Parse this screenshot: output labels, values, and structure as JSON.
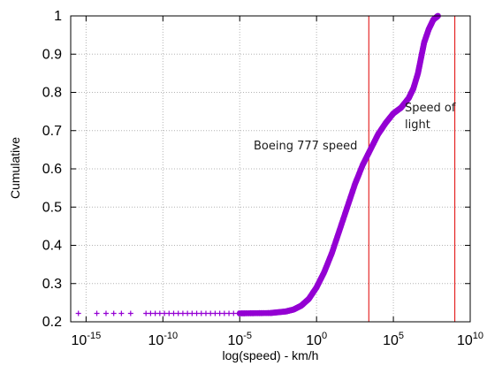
{
  "chart_data": {
    "type": "scatter",
    "title": "",
    "xlabel": "log(speed) - km/h",
    "ylabel": "Cumulative",
    "x_scale": "log10",
    "xlim_exponent": [
      -16,
      10
    ],
    "ylim": [
      0.2,
      1.0
    ],
    "x_ticks": [
      {
        "exp": -15,
        "base": "10",
        "sup": "-15"
      },
      {
        "exp": -10,
        "base": "10",
        "sup": "-10"
      },
      {
        "exp": -5,
        "base": "10",
        "sup": "-5"
      },
      {
        "exp": 0,
        "base": "10",
        "sup": "0"
      },
      {
        "exp": 5,
        "base": "10",
        "sup": "5"
      },
      {
        "exp": 10,
        "base": "10",
        "sup": "10"
      }
    ],
    "y_ticks": [
      {
        "value": 0.2,
        "label": "0.2"
      },
      {
        "value": 0.3,
        "label": "0.3"
      },
      {
        "value": 0.4,
        "label": "0.4"
      },
      {
        "value": 0.5,
        "label": "0.5"
      },
      {
        "value": 0.6,
        "label": "0.6"
      },
      {
        "value": 0.7,
        "label": "0.7"
      },
      {
        "value": 0.8,
        "label": "0.8"
      },
      {
        "value": 0.9,
        "label": "0.9"
      },
      {
        "value": 1.0,
        "label": "1"
      }
    ],
    "grid": true,
    "series_color": "#9400D3",
    "sparse_points": [
      {
        "exp": -15.5,
        "y": 0.222
      },
      {
        "exp": -14.3,
        "y": 0.222
      },
      {
        "exp": -13.7,
        "y": 0.222
      },
      {
        "exp": -13.2,
        "y": 0.222
      },
      {
        "exp": -12.7,
        "y": 0.222
      },
      {
        "exp": -12.1,
        "y": 0.222
      },
      {
        "exp": -11.1,
        "y": 0.222
      },
      {
        "exp": -10.8,
        "y": 0.222
      },
      {
        "exp": -10.5,
        "y": 0.222
      },
      {
        "exp": -10.2,
        "y": 0.222
      },
      {
        "exp": -9.9,
        "y": 0.222
      },
      {
        "exp": -9.6,
        "y": 0.222
      },
      {
        "exp": -9.3,
        "y": 0.222
      },
      {
        "exp": -9.0,
        "y": 0.222
      },
      {
        "exp": -8.7,
        "y": 0.222
      },
      {
        "exp": -8.4,
        "y": 0.222
      },
      {
        "exp": -8.1,
        "y": 0.222
      },
      {
        "exp": -7.8,
        "y": 0.222
      },
      {
        "exp": -7.5,
        "y": 0.222
      },
      {
        "exp": -7.2,
        "y": 0.222
      },
      {
        "exp": -6.9,
        "y": 0.222
      },
      {
        "exp": -6.6,
        "y": 0.222
      },
      {
        "exp": -6.3,
        "y": 0.222
      },
      {
        "exp": -6.0,
        "y": 0.222
      },
      {
        "exp": -5.7,
        "y": 0.222
      },
      {
        "exp": -5.4,
        "y": 0.222
      },
      {
        "exp": -5.1,
        "y": 0.222
      }
    ],
    "curve_points": [
      {
        "exp": -5.0,
        "y": 0.222
      },
      {
        "exp": -3.0,
        "y": 0.223
      },
      {
        "exp": -2.0,
        "y": 0.227
      },
      {
        "exp": -1.5,
        "y": 0.232
      },
      {
        "exp": -1.0,
        "y": 0.242
      },
      {
        "exp": -0.5,
        "y": 0.26
      },
      {
        "exp": 0.0,
        "y": 0.29
      },
      {
        "exp": 0.5,
        "y": 0.33
      },
      {
        "exp": 1.0,
        "y": 0.38
      },
      {
        "exp": 1.5,
        "y": 0.44
      },
      {
        "exp": 2.0,
        "y": 0.5
      },
      {
        "exp": 2.5,
        "y": 0.56
      },
      {
        "exp": 3.0,
        "y": 0.61
      },
      {
        "exp": 3.5,
        "y": 0.65
      },
      {
        "exp": 4.0,
        "y": 0.69
      },
      {
        "exp": 4.5,
        "y": 0.72
      },
      {
        "exp": 5.0,
        "y": 0.745
      },
      {
        "exp": 5.5,
        "y": 0.76
      },
      {
        "exp": 6.0,
        "y": 0.785
      },
      {
        "exp": 6.3,
        "y": 0.81
      },
      {
        "exp": 6.6,
        "y": 0.85
      },
      {
        "exp": 6.8,
        "y": 0.89
      },
      {
        "exp": 7.0,
        "y": 0.93
      },
      {
        "exp": 7.3,
        "y": 0.965
      },
      {
        "exp": 7.6,
        "y": 0.99
      },
      {
        "exp": 7.9,
        "y": 1.0
      }
    ],
    "reference_lines": [
      {
        "exp": 3.4,
        "label": "Boeing 777 speed"
      },
      {
        "exp": 9.0,
        "label": "Speed of light"
      }
    ],
    "reference_line_color": "#E00000"
  },
  "annotations": {
    "boeing": "Boeing 777 speed",
    "light_line1": "Speed of",
    "light_line2": "light"
  }
}
